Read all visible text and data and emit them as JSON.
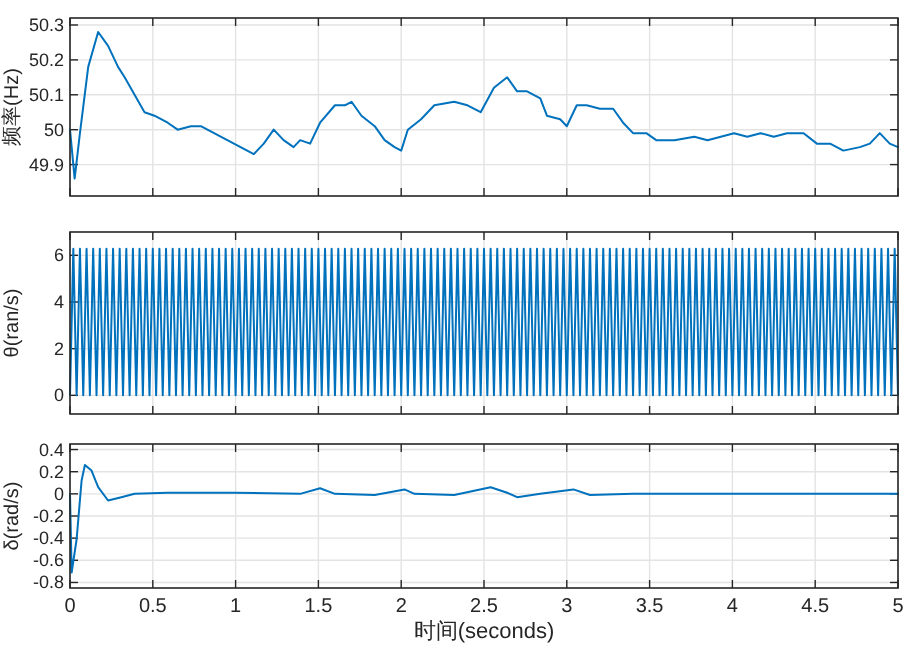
{
  "chart_data": [
    {
      "type": "line",
      "ylabel": "频率(Hz)",
      "xlim": [
        0,
        5
      ],
      "ylim": [
        49.81,
        50.32
      ],
      "xticks": [
        0,
        0.5,
        1,
        1.5,
        2,
        2.5,
        3,
        3.5,
        4,
        4.5,
        5
      ],
      "yticks": [
        49.9,
        50,
        50.1,
        50.2,
        50.3
      ],
      "grid": true,
      "tick_labels": "y",
      "x": [
        0,
        0.028,
        0.06,
        0.11,
        0.17,
        0.23,
        0.29,
        0.33,
        0.39,
        0.45,
        0.51,
        0.59,
        0.65,
        0.73,
        0.79,
        0.87,
        0.95,
        1.03,
        1.11,
        1.17,
        1.23,
        1.29,
        1.35,
        1.39,
        1.45,
        1.51,
        1.6,
        1.66,
        1.7,
        1.76,
        1.84,
        1.9,
        1.96,
        2,
        2.04,
        2.12,
        2.2,
        2.32,
        2.4,
        2.48,
        2.56,
        2.64,
        2.7,
        2.76,
        2.84,
        2.88,
        2.96,
        3,
        3.06,
        3.12,
        3.2,
        3.28,
        3.34,
        3.4,
        3.48,
        3.54,
        3.65,
        3.77,
        3.85,
        3.93,
        4.01,
        4.09,
        4.17,
        4.25,
        4.33,
        4.43,
        4.51,
        4.59,
        4.67,
        4.77,
        4.83,
        4.89,
        4.95,
        5
      ],
      "series": [
        {
          "color": "#0072bd",
          "values": [
            50,
            49.86,
            49.99,
            50.18,
            50.28,
            50.24,
            50.18,
            50.15,
            50.1,
            50.05,
            50.04,
            50.02,
            50,
            50.01,
            50.01,
            49.99,
            49.97,
            49.95,
            49.93,
            49.96,
            50,
            49.97,
            49.95,
            49.97,
            49.96,
            50.02,
            50.07,
            50.07,
            50.08,
            50.04,
            50.01,
            49.97,
            49.95,
            49.94,
            50,
            50.03,
            50.07,
            50.08,
            50.07,
            50.05,
            50.12,
            50.15,
            50.11,
            50.11,
            50.09,
            50.04,
            50.03,
            50.01,
            50.07,
            50.07,
            50.06,
            50.06,
            50.02,
            49.99,
            49.99,
            49.97,
            49.97,
            49.98,
            49.97,
            49.98,
            49.99,
            49.98,
            49.99,
            49.98,
            49.99,
            49.99,
            49.96,
            49.96,
            49.94,
            49.95,
            49.96,
            49.99,
            49.96,
            49.95
          ]
        }
      ]
    },
    {
      "type": "line",
      "ylabel": "θ(ran/s)",
      "xlim": [
        0,
        5
      ],
      "ylim": [
        -0.8,
        7
      ],
      "xticks": [
        0,
        0.5,
        1,
        1.5,
        2,
        2.5,
        3,
        3.5,
        4,
        4.5,
        5
      ],
      "yticks": [
        0,
        2,
        4,
        6
      ],
      "grid": true,
      "tick_labels": "y",
      "x": [
        0,
        0.02,
        0.04,
        0.06,
        0.08,
        0.1,
        0.12,
        0.14,
        0.16,
        0.18,
        0.2,
        0.22,
        0.24,
        0.26,
        0.28,
        0.3,
        0.32,
        0.34,
        0.36,
        0.38,
        0.4,
        0.42,
        0.44,
        0.46,
        0.48,
        0.5,
        0.52,
        0.54,
        0.56,
        0.58,
        0.6,
        0.62,
        0.64,
        0.66,
        0.68,
        0.7,
        0.72,
        0.74,
        0.76,
        0.78,
        0.8,
        0.82,
        0.84,
        0.86,
        0.88,
        0.9,
        0.92,
        0.94,
        0.96,
        0.98,
        1,
        1.02,
        1.04,
        1.06,
        1.08,
        1.1,
        1.12,
        1.14,
        1.16,
        1.18,
        1.2,
        1.22,
        1.24,
        1.26,
        1.28,
        1.3,
        1.32,
        1.34,
        1.36,
        1.38,
        1.4,
        1.42,
        1.44,
        1.46,
        1.48,
        1.5,
        1.52,
        1.54,
        1.56,
        1.58,
        1.6,
        1.62,
        1.64,
        1.66,
        1.68,
        1.7,
        1.72,
        1.74,
        1.76,
        1.78,
        1.8,
        1.82,
        1.84,
        1.86,
        1.88,
        1.9,
        1.92,
        1.94,
        1.96,
        1.98,
        2,
        2.02,
        2.04,
        2.06,
        2.08,
        2.1,
        2.12,
        2.14,
        2.16,
        2.18,
        2.2,
        2.22,
        2.24,
        2.26,
        2.28,
        2.3,
        2.32,
        2.34,
        2.36,
        2.38,
        2.4,
        2.42,
        2.44,
        2.46,
        2.48,
        2.5,
        2.52,
        2.54,
        2.56,
        2.58,
        2.6,
        2.62,
        2.64,
        2.66,
        2.68,
        2.7,
        2.72,
        2.74,
        2.76,
        2.78,
        2.8,
        2.82,
        2.84,
        2.86,
        2.88,
        2.9,
        2.92,
        2.94,
        2.96,
        2.98,
        3,
        3.02,
        3.04,
        3.06,
        3.08,
        3.1,
        3.12,
        3.14,
        3.16,
        3.18,
        3.2,
        3.22,
        3.24,
        3.26,
        3.28,
        3.3,
        3.32,
        3.34,
        3.36,
        3.38,
        3.4,
        3.42,
        3.44,
        3.46,
        3.48,
        3.5,
        3.52,
        3.54,
        3.56,
        3.58,
        3.6,
        3.62,
        3.64,
        3.66,
        3.68,
        3.7,
        3.72,
        3.74,
        3.76,
        3.78,
        3.8,
        3.82,
        3.84,
        3.86,
        3.88,
        3.9,
        3.92,
        3.94,
        3.96,
        3.98,
        4,
        4.02,
        4.04,
        4.06,
        4.08,
        4.1,
        4.12,
        4.14,
        4.16,
        4.18,
        4.2,
        4.22,
        4.24,
        4.26,
        4.28,
        4.3,
        4.32,
        4.34,
        4.36,
        4.38,
        4.4,
        4.42,
        4.44,
        4.46,
        4.48,
        4.5,
        4.52,
        4.54,
        4.56,
        4.58,
        4.6,
        4.62,
        4.64,
        4.66,
        4.68,
        4.7,
        4.72,
        4.74,
        4.76,
        4.78,
        4.8,
        4.82,
        4.84,
        4.86,
        4.88,
        4.9,
        4.92,
        4.94,
        4.96,
        4.98,
        5
      ],
      "series": [
        {
          "color": "#0072bd",
          "values": [
            0,
            6.28,
            0,
            6.28,
            0,
            6.28,
            0,
            6.28,
            0,
            6.28,
            0,
            6.28,
            0,
            6.28,
            0,
            6.28,
            0,
            6.28,
            0,
            6.28,
            0,
            6.28,
            0,
            6.28,
            0,
            6.28,
            0,
            6.28,
            0,
            6.28,
            0,
            6.28,
            0,
            6.28,
            0,
            6.28,
            0,
            6.28,
            0,
            6.28,
            0,
            6.28,
            0,
            6.28,
            0,
            6.28,
            0,
            6.28,
            0,
            6.28,
            0,
            6.28,
            0,
            6.28,
            0,
            6.28,
            0,
            6.28,
            0,
            6.28,
            0,
            6.28,
            0,
            6.28,
            0,
            6.28,
            0,
            6.28,
            0,
            6.28,
            0,
            6.28,
            0,
            6.28,
            0,
            6.28,
            0,
            6.28,
            0,
            6.28,
            0,
            6.28,
            0,
            6.28,
            0,
            6.28,
            0,
            6.28,
            0,
            6.28,
            0,
            6.28,
            0,
            6.28,
            0,
            6.28,
            0,
            6.28,
            0,
            6.28,
            0,
            6.28,
            0,
            6.28,
            0,
            6.28,
            0,
            6.28,
            0,
            6.28,
            0,
            6.28,
            0,
            6.28,
            0,
            6.28,
            0,
            6.28,
            0,
            6.28,
            0,
            6.28,
            0,
            6.28,
            0,
            6.28,
            0,
            6.28,
            0,
            6.28,
            0,
            6.28,
            0,
            6.28,
            0,
            6.28,
            0,
            6.28,
            0,
            6.28,
            0,
            6.28,
            0,
            6.28,
            0,
            6.28,
            0,
            6.28,
            0,
            6.28,
            0,
            6.28,
            0,
            6.28,
            0,
            6.28,
            0,
            6.28,
            0,
            6.28,
            0,
            6.28,
            0,
            6.28,
            0,
            6.28,
            0,
            6.28,
            0,
            6.28,
            0,
            6.28,
            0,
            6.28,
            0,
            6.28,
            0,
            6.28,
            0,
            6.28,
            0,
            6.28,
            0,
            6.28,
            0,
            6.28,
            0,
            6.28,
            0,
            6.28,
            0,
            6.28,
            0,
            6.28,
            0,
            6.28,
            0,
            6.28,
            0,
            6.28,
            0,
            6.28,
            0,
            6.28,
            0,
            6.28,
            0,
            6.28,
            0,
            6.28,
            0,
            6.28,
            0,
            6.28,
            0,
            6.28,
            0,
            6.28,
            0,
            6.28,
            0,
            6.28,
            0,
            6.28,
            0,
            6.28,
            0,
            6.28,
            0,
            6.28,
            0,
            6.28,
            0,
            6.28,
            0,
            6.28,
            0,
            6.28,
            0,
            6.28,
            0,
            6.28,
            0,
            6.28,
            0,
            6.28,
            0,
            6.28,
            0,
            6.28,
            0
          ]
        }
      ]
    },
    {
      "type": "line",
      "ylabel": "δ(rad/s)",
      "xlabel": "时间(seconds)",
      "xlim": [
        0,
        5
      ],
      "ylim": [
        -0.85,
        0.45
      ],
      "xticks": [
        0,
        0.5,
        1,
        1.5,
        2,
        2.5,
        3,
        3.5,
        4,
        4.5,
        5
      ],
      "yticks": [
        -0.8,
        -0.6,
        -0.4,
        -0.2,
        0,
        0.2,
        0.4
      ],
      "grid": true,
      "x": [
        0,
        0.01,
        0.04,
        0.07,
        0.09,
        0.13,
        0.17,
        0.23,
        0.31,
        0.39,
        0.59,
        0.99,
        1.39,
        1.51,
        1.6,
        1.84,
        2.02,
        2.08,
        2.32,
        2.54,
        2.64,
        2.7,
        2.84,
        3.04,
        3.14,
        3.4,
        5
      ],
      "series": [
        {
          "color": "#0072bd",
          "values": [
            0,
            -0.71,
            -0.41,
            0.12,
            0.26,
            0.21,
            0.06,
            -0.06,
            -0.03,
            0,
            0.01,
            0.01,
            0,
            0.05,
            0,
            -0.01,
            0.04,
            0,
            -0.01,
            0.06,
            0.01,
            -0.03,
            0,
            0.04,
            -0.01,
            0,
            0
          ]
        }
      ]
    }
  ]
}
